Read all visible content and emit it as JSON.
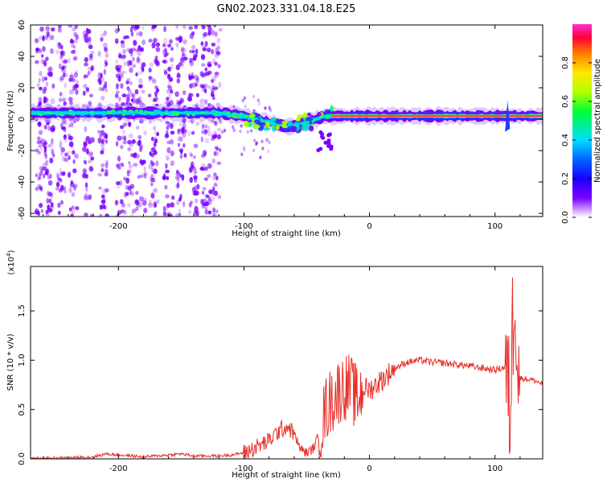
{
  "title": "GN02.2023.331.04.18.E25",
  "colors": {
    "snr_line": "#e8302a",
    "band_core": "#ff2d55",
    "scatter": "#7a00ff"
  },
  "chart_data": [
    {
      "type": "heatmap",
      "xlabel": "Height of straight line (km)",
      "ylabel": "Frequency (Hz)",
      "xlim": [
        -270,
        138
      ],
      "ylim": [
        -62,
        60
      ],
      "x_ticks": [
        -200,
        -100,
        0,
        100
      ],
      "x_tick_labels": [
        "-200",
        "-100",
        "0",
        "100"
      ],
      "y_ticks": [
        -60,
        -40,
        -20,
        0,
        20,
        40,
        60
      ],
      "y_tick_labels": [
        "-60",
        "-40",
        "-20",
        "0",
        "20",
        "40",
        "60"
      ],
      "colorbar": {
        "label": "Normalized spectral amplitude",
        "range": [
          0,
          1
        ],
        "ticks": [
          0.0,
          0.2,
          0.4,
          0.6,
          0.8
        ],
        "tick_labels": [
          "0.0",
          "0.2",
          "0.4",
          "0.6",
          "0.8"
        ]
      },
      "band_centerline": [
        {
          "x": -270,
          "f": 4
        },
        {
          "x": -200,
          "f": 4
        },
        {
          "x": -120,
          "f": 4
        },
        {
          "x": -100,
          "f": 2
        },
        {
          "x": -80,
          "f": -2
        },
        {
          "x": -65,
          "f": -5
        },
        {
          "x": -50,
          "f": -2
        },
        {
          "x": -35,
          "f": 2
        },
        {
          "x": -20,
          "f": 2
        },
        {
          "x": 0,
          "f": 2
        },
        {
          "x": 100,
          "f": 2
        },
        {
          "x": 138,
          "f": 2
        }
      ]
    },
    {
      "type": "line",
      "xlabel": "Height of straight line (km)",
      "ylabel": "SNR (10 * v/v)",
      "y_multiplier": "(x10",
      "y_multiplier_exp": "4",
      "y_multiplier_close": ")",
      "xlim": [
        -270,
        138
      ],
      "ylim": [
        0,
        1.95
      ],
      "x_ticks": [
        -200,
        -100,
        0,
        100
      ],
      "x_tick_labels": [
        "-200",
        "-100",
        "0",
        "100"
      ],
      "y_ticks": [
        0.0,
        0.5,
        1.0,
        1.5
      ],
      "y_tick_labels": [
        "0.0",
        "0.5",
        "1.0",
        "1.5"
      ],
      "series": [
        {
          "x": [
            -270,
            -240,
            -220,
            -210,
            -200,
            -190,
            -180,
            -160,
            -150,
            -140,
            -120,
            -110,
            -100,
            -90,
            -80,
            -75,
            -70,
            -65,
            -60,
            -55,
            -50,
            -45,
            -40,
            -35,
            -30,
            -25,
            -20,
            -15,
            -10,
            -5,
            0,
            10,
            20,
            30,
            40,
            50,
            60,
            80,
            100,
            108,
            112,
            114,
            116,
            118,
            120,
            130,
            138
          ],
          "y": [
            0.0,
            0.01,
            0.02,
            0.05,
            0.04,
            0.03,
            0.02,
            0.04,
            0.05,
            0.03,
            0.03,
            0.04,
            0.06,
            0.12,
            0.18,
            0.25,
            0.3,
            0.33,
            0.25,
            0.1,
            0.06,
            0.1,
            0.25,
            0.5,
            0.6,
            0.68,
            0.74,
            0.72,
            0.6,
            0.72,
            0.7,
            0.8,
            0.92,
            0.98,
            1.0,
            0.98,
            0.97,
            0.94,
            0.9,
            0.93,
            0.5,
            1.3,
            1.9,
            0.95,
            0.82,
            0.8,
            0.76
          ]
        }
      ]
    }
  ]
}
